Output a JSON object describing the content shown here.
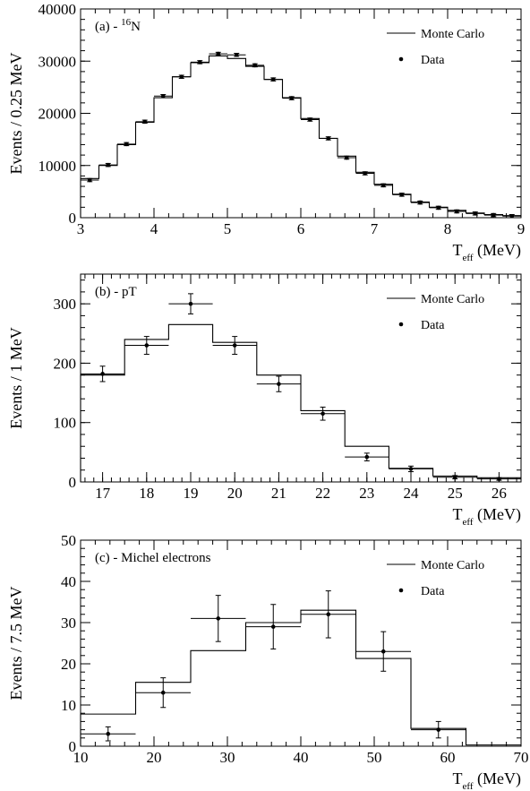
{
  "chart_data": [
    {
      "type": "histogram-with-points",
      "panel_label": "(a) - ",
      "panel_label_sup": "16",
      "panel_label_tail": "N",
      "ylabel": "Events / 0.25 MeV",
      "xlabel_main": "T",
      "xlabel_sub": "eff",
      "xlabel_tail": " (MeV)",
      "xlim": [
        3,
        9
      ],
      "ylim": [
        0,
        40000
      ],
      "xticks": [
        3,
        4,
        5,
        6,
        7,
        8,
        9
      ],
      "yticks": [
        0,
        10000,
        20000,
        30000,
        40000
      ],
      "legend": {
        "position": "top-right",
        "line_label": "Monte Carlo",
        "point_label": "Data"
      },
      "series": [
        {
          "name": "Monte Carlo",
          "style": "step",
          "bin_edges": [
            3.0,
            3.25,
            3.5,
            3.75,
            4.0,
            4.25,
            4.5,
            4.75,
            5.0,
            5.25,
            5.5,
            5.75,
            6.0,
            6.25,
            6.5,
            6.75,
            7.0,
            7.25,
            7.5,
            7.75,
            8.0,
            8.25,
            8.5,
            8.75,
            9.0
          ],
          "values": [
            7500,
            10000,
            14000,
            18300,
            23000,
            27000,
            29700,
            31000,
            30500,
            29000,
            26500,
            23000,
            19000,
            15200,
            11800,
            8700,
            6400,
            4500,
            3000,
            2000,
            1400,
            900,
            600,
            400
          ]
        },
        {
          "name": "Data",
          "style": "points",
          "x": [
            3.125,
            3.375,
            3.625,
            3.875,
            4.125,
            4.375,
            4.625,
            4.875,
            5.125,
            5.375,
            5.625,
            5.875,
            6.125,
            6.375,
            6.625,
            6.875,
            7.125,
            7.375,
            7.625,
            7.875,
            8.125,
            8.375,
            8.625,
            8.875
          ],
          "y": [
            7200,
            10100,
            14100,
            18400,
            23300,
            27000,
            29800,
            31400,
            31200,
            29200,
            26500,
            22900,
            18800,
            15200,
            11500,
            8500,
            6200,
            4400,
            2900,
            1900,
            1200,
            800,
            500,
            300
          ],
          "xerr": 0.125,
          "yerr": 300
        }
      ]
    },
    {
      "type": "histogram-with-points",
      "panel_label": "(b) - pT",
      "ylabel": "Events / 1 MeV",
      "xlabel_main": "T",
      "xlabel_sub": "eff",
      "xlabel_tail": " (MeV)",
      "xlim": [
        16.5,
        26.5
      ],
      "ylim": [
        0,
        350
      ],
      "xticks": [
        17,
        18,
        19,
        20,
        21,
        22,
        23,
        24,
        25,
        26
      ],
      "yticks": [
        0,
        100,
        200,
        300
      ],
      "legend": {
        "position": "top-right",
        "line_label": "Monte Carlo",
        "point_label": "Data"
      },
      "series": [
        {
          "name": "Monte Carlo",
          "style": "step",
          "bin_edges": [
            16.5,
            17.5,
            18.5,
            19.5,
            20.5,
            21.5,
            22.5,
            23.5,
            24.5,
            25.5,
            26.5
          ],
          "values": [
            180,
            240,
            265,
            235,
            180,
            120,
            60,
            23,
            10,
            7
          ]
        },
        {
          "name": "Data",
          "style": "points",
          "x": [
            17,
            18,
            19,
            20,
            21,
            22,
            23,
            24,
            25,
            26
          ],
          "y": [
            182,
            230,
            300,
            230,
            165,
            115,
            42,
            22,
            8,
            5
          ],
          "xerr": 0.5,
          "yerr": [
            13,
            15,
            17,
            15,
            13,
            11,
            6.5,
            4.7,
            2.8,
            2.2
          ]
        }
      ]
    },
    {
      "type": "histogram-with-points",
      "panel_label": "(c) - Michel electrons",
      "ylabel": "Events / 7.5 MeV",
      "xlabel_main": "T",
      "xlabel_sub": "eff",
      "xlabel_tail": " (MeV)",
      "xlim": [
        10,
        70
      ],
      "ylim": [
        0,
        50
      ],
      "xticks": [
        10,
        20,
        30,
        40,
        50,
        60,
        70
      ],
      "yticks": [
        0,
        10,
        20,
        30,
        40,
        50
      ],
      "legend": {
        "position": "top-right",
        "line_label": "Monte Carlo",
        "point_label": "Data"
      },
      "series": [
        {
          "name": "Monte Carlo",
          "style": "step",
          "bin_edges": [
            10,
            17.5,
            25,
            32.5,
            40,
            47.5,
            55,
            62.5,
            70
          ],
          "values": [
            7.8,
            15.5,
            23.2,
            30.0,
            33.0,
            21.3,
            4.3,
            0.3
          ]
        },
        {
          "name": "Data",
          "style": "points",
          "x": [
            13.75,
            21.25,
            28.75,
            36.25,
            43.75,
            51.25,
            58.75
          ],
          "y": [
            3,
            13,
            31,
            29,
            32,
            23,
            4
          ],
          "xerr": 3.75,
          "yerr": [
            1.7,
            3.6,
            5.6,
            5.4,
            5.7,
            4.8,
            2.0
          ]
        }
      ]
    }
  ]
}
